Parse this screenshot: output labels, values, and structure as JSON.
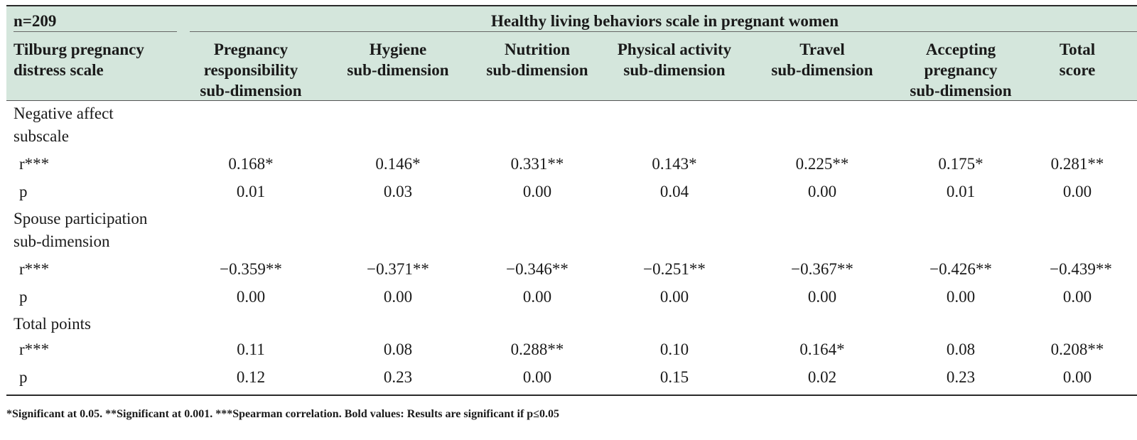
{
  "table": {
    "n_label": "n=209",
    "title": "Healthy living behaviors scale in pregnant women",
    "row_header": [
      "Tilburg pregnancy",
      "distress scale"
    ],
    "columns": [
      [
        "Pregnancy",
        "responsibility",
        "sub-dimension"
      ],
      [
        "Hygiene",
        "sub-dimension"
      ],
      [
        "Nutrition",
        "sub-dimension"
      ],
      [
        "Physical activity",
        "sub-dimension"
      ],
      [
        "Travel",
        "sub-dimension"
      ],
      [
        "Accepting",
        "pregnancy",
        "sub-dimension"
      ],
      [
        "Total",
        "score"
      ]
    ],
    "groups": [
      {
        "label": [
          "Negative affect",
          "subscale"
        ],
        "r_label": "r***",
        "r": [
          "0.168*",
          "0.146*",
          "0.331**",
          "0.143*",
          "0.225**",
          "0.175*",
          "0.281**"
        ],
        "p_label": "p",
        "p": [
          "0.01",
          "0.03",
          "0.00",
          "0.04",
          "0.00",
          "0.01",
          "0.00"
        ]
      },
      {
        "label": [
          "Spouse participation",
          "sub-dimension"
        ],
        "r_label": "r***",
        "r": [
          "−0.359**",
          "−0.371**",
          "−0.346**",
          "−0.251**",
          "−0.367**",
          "−0.426**",
          "−0.439**"
        ],
        "p_label": "p",
        "p": [
          "0.00",
          "0.00",
          "0.00",
          "0.00",
          "0.00",
          "0.00",
          "0.00"
        ]
      },
      {
        "label": [
          "Total points"
        ],
        "r_label": "r***",
        "r": [
          "0.11",
          "0.08",
          "0.288**",
          "0.10",
          "0.164*",
          "0.08",
          "0.208**"
        ],
        "p_label": "p",
        "p": [
          "0.12",
          "0.23",
          "0.00",
          "0.15",
          "0.02",
          "0.23",
          "0.00"
        ]
      }
    ],
    "footnote": "*Significant at 0.05. **Significant at 0.001. ***Spearman correlation. Bold values: Results are significant if p≤0.05",
    "header_color": "#d4e6dc"
  }
}
